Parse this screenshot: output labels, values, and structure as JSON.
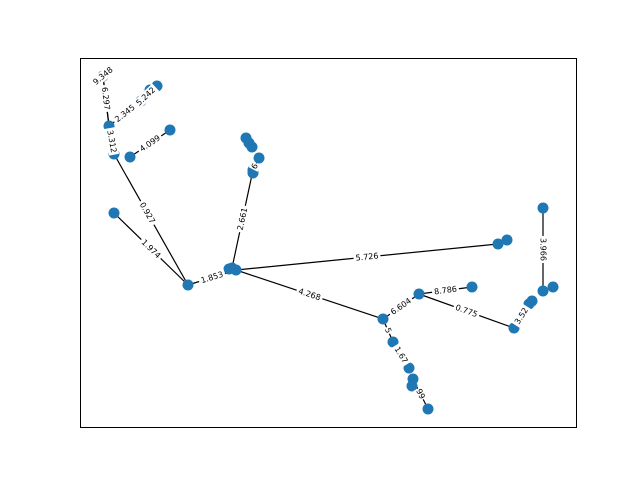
{
  "graph": {
    "edges": [
      {
        "id": "e1",
        "label": "9.348"
      },
      {
        "id": "e2",
        "label": "6.297"
      },
      {
        "id": "e3",
        "label": "2.345"
      },
      {
        "id": "e4",
        "label": "5.242"
      },
      {
        "id": "e5",
        "label": "3.312"
      },
      {
        "id": "e6",
        "label": "4.099"
      },
      {
        "id": "e7",
        "label": "0.927"
      },
      {
        "id": "e8",
        "label": "1.974"
      },
      {
        "id": "e9",
        "label": "1.853"
      },
      {
        "id": "e10",
        "label": "2.661"
      },
      {
        "id": "e11",
        "label": "6"
      },
      {
        "id": "e12",
        "label": "5.726"
      },
      {
        "id": "e13",
        "label": "4.268"
      },
      {
        "id": "e14",
        "label": "6.604"
      },
      {
        "id": "e15",
        "label": "8.786"
      },
      {
        "id": "e16",
        "label": "0.775"
      },
      {
        "id": "e17",
        "label": "3.966"
      },
      {
        "id": "e18",
        "label": "3.52"
      },
      {
        "id": "e19",
        "label": "5"
      },
      {
        "id": "e20",
        "label": "1.67"
      },
      {
        "id": "e21",
        "label": "99"
      }
    ],
    "colors": {
      "node": "#1f77b4",
      "edge": "#000000"
    }
  }
}
